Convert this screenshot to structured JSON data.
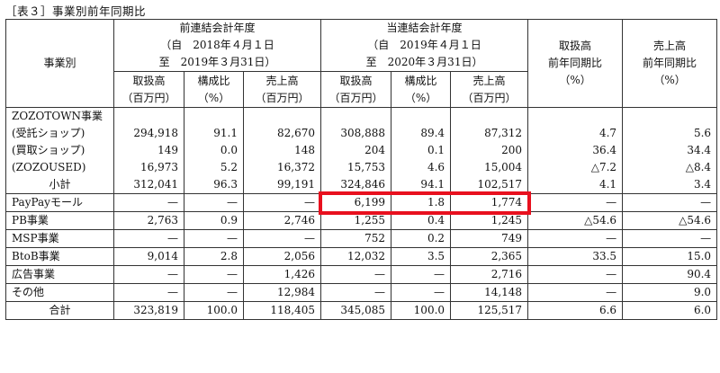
{
  "caption": "［表３］事業別前年同期比",
  "header": {
    "segment_col": "事業別",
    "prev_period": {
      "title": "前連結会計年度",
      "from": "（自　2018年４月１日",
      "to": "至　2019年３月31日）"
    },
    "curr_period": {
      "title": "当連結会計年度",
      "from": "（自　2019年４月１日",
      "to": "至　2020年３月31日）"
    },
    "yoy_handling": [
      "取扱高",
      "前年同期比",
      "（%）"
    ],
    "yoy_sales": [
      "売上高",
      "前年同期比",
      "（%）"
    ],
    "sub": {
      "handling": [
        "取扱高",
        "（百万円）"
      ],
      "ratio": [
        "構成比",
        "（%）"
      ],
      "sales": [
        "売上高",
        "（百万円）"
      ]
    }
  },
  "rows": [
    {
      "label": "ZOZOTOWN事業",
      "cells": [
        "",
        "",
        "",
        "",
        "",
        "",
        "",
        ""
      ]
    },
    {
      "label": "(受託ショップ)",
      "cells": [
        "294,918",
        "91.1",
        "82,670",
        "308,888",
        "89.4",
        "87,312",
        "4.7",
        "5.6"
      ]
    },
    {
      "label": "(買取ショップ)",
      "cells": [
        "149",
        "0.0",
        "148",
        "204",
        "0.1",
        "200",
        "36.4",
        "34.4"
      ]
    },
    {
      "label": "(ZOZOUSED)",
      "cells": [
        "16,973",
        "5.2",
        "16,372",
        "15,753",
        "4.6",
        "15,004",
        "△7.2",
        "△8.4"
      ]
    },
    {
      "label": "小計",
      "cells": [
        "312,041",
        "96.3",
        "99,191",
        "324,846",
        "94.1",
        "102,517",
        "4.1",
        "3.4"
      ]
    },
    {
      "label": "PayPayモール",
      "cells": [
        "—",
        "—",
        "—",
        "6,199",
        "1.8",
        "1,774",
        "—",
        "—"
      ]
    },
    {
      "label": "PB事業",
      "cells": [
        "2,763",
        "0.9",
        "2,746",
        "1,255",
        "0.4",
        "1,245",
        "△54.6",
        "△54.6"
      ]
    },
    {
      "label": "MSP事業",
      "cells": [
        "—",
        "—",
        "—",
        "752",
        "0.2",
        "749",
        "—",
        "—"
      ]
    },
    {
      "label": "BtoB事業",
      "cells": [
        "9,014",
        "2.8",
        "2,056",
        "12,032",
        "3.5",
        "2,365",
        "33.5",
        "15.0"
      ]
    },
    {
      "label": "広告事業",
      "cells": [
        "—",
        "—",
        "1,426",
        "—",
        "—",
        "2,716",
        "—",
        "90.4"
      ]
    },
    {
      "label": "その他",
      "cells": [
        "—",
        "—",
        "12,984",
        "—",
        "—",
        "14,148",
        "—",
        "9.0"
      ]
    },
    {
      "label": "合計",
      "cells": [
        "323,819",
        "100.0",
        "118,405",
        "345,085",
        "100.0",
        "125,517",
        "6.6",
        "6.0"
      ]
    }
  ],
  "highlight_row": "PayPayモール",
  "colors": {
    "highlight_border": "#e8101e",
    "grid": "#333333"
  }
}
